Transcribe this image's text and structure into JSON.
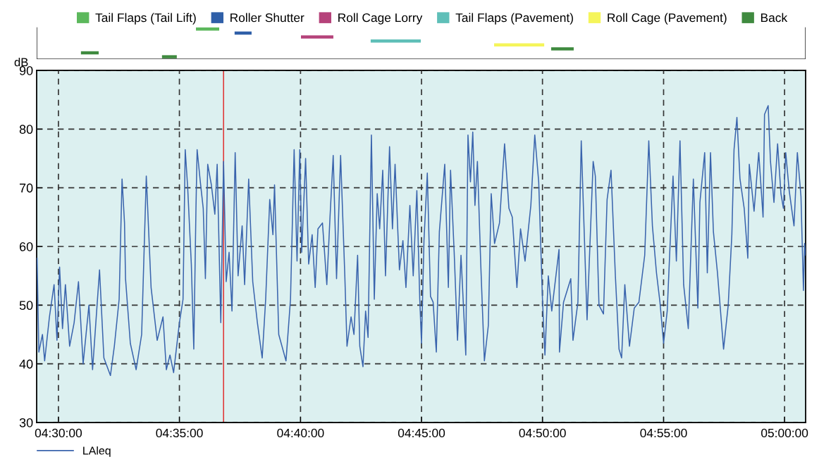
{
  "chart_data": [
    {
      "type": "bar",
      "orientation": "horizontal",
      "stacked": true,
      "categories": [
        null,
        null,
        null,
        null,
        null,
        null,
        null,
        null
      ],
      "xlim": [
        4.485,
        5.0145
      ],
      "tick_labels": false,
      "legend": "top",
      "series": [
        {
          "name": "Tail Flaps (Tail Lift)",
          "color": "#5cb85c",
          "values": [
            0.016,
            null,
            null,
            null,
            null,
            null,
            null,
            null
          ],
          "base": [
            4.5947,
            null,
            null,
            null,
            null,
            null,
            null,
            null
          ]
        },
        {
          "name": "Roller Shutter",
          "color": "#2f5fa8",
          "values": [
            null,
            0.0117,
            null,
            null,
            null,
            null,
            null,
            null
          ],
          "base": [
            null,
            4.6213,
            null,
            null,
            null,
            null,
            null,
            null
          ]
        },
        {
          "name": "Roll Cage Lorry",
          "color": "#b5427a",
          "values": [
            null,
            null,
            0.0223,
            null,
            null,
            null,
            null,
            null
          ],
          "base": [
            null,
            null,
            4.667,
            null,
            null,
            null,
            null,
            null
          ]
        },
        {
          "name": "Tail Flaps (Pavement)",
          "color": "#5fbfb8",
          "values": [
            null,
            null,
            null,
            0.0345,
            null,
            null,
            null,
            null
          ],
          "base": [
            null,
            null,
            null,
            4.715,
            null,
            null,
            null,
            null
          ]
        },
        {
          "name": "Roll Cage (Pavement)",
          "color": "#f5f55a",
          "values": [
            null,
            null,
            null,
            null,
            0.0345,
            null,
            null,
            null
          ],
          "base": [
            null,
            null,
            null,
            null,
            4.8,
            null,
            null,
            null
          ]
        },
        {
          "name": "Back",
          "color": "#3f8a3f",
          "values": [
            null,
            null,
            null,
            null,
            null,
            0.0155,
            null,
            null
          ],
          "base": [
            null,
            null,
            null,
            null,
            null,
            4.8393,
            null,
            null
          ]
        },
        {
          "color": "#3f8a3f",
          "values": [
            null,
            null,
            null,
            null,
            null,
            null,
            0.0122,
            null
          ],
          "base": [
            null,
            null,
            null,
            null,
            null,
            null,
            4.5155,
            null
          ]
        },
        {
          "color": "#3f8a3f",
          "values": [
            null,
            null,
            null,
            null,
            null,
            null,
            null,
            0.0102
          ],
          "base": [
            null,
            null,
            null,
            null,
            null,
            null,
            null,
            4.5713
          ]
        }
      ]
    },
    {
      "type": "line",
      "ylabel": "dB",
      "xlim": [
        4.485,
        5.0145
      ],
      "ylim": [
        30,
        90
      ],
      "yticks": [
        30,
        40,
        50,
        60,
        70,
        80,
        90
      ],
      "xticks": [
        {
          "value": 4.5,
          "label": "04:30:00"
        },
        {
          "value": 4.5833,
          "label": "04:35:00"
        },
        {
          "value": 4.6667,
          "label": "04:40:00"
        },
        {
          "value": 4.75,
          "label": "04:45:00"
        },
        {
          "value": 4.8333,
          "label": "04:50:00"
        },
        {
          "value": 4.9167,
          "label": "04:55:00"
        },
        {
          "value": 5.0,
          "label": "05:00:00"
        }
      ],
      "grid": true,
      "legend": "bottom left",
      "ref_lines": [
        {
          "axis": "x",
          "value": 4.6137,
          "color": "#e03030"
        }
      ],
      "x": [
        4.4853,
        4.4865,
        4.489,
        4.4905,
        4.4938,
        4.497,
        4.499,
        4.5008,
        4.5028,
        4.5048,
        4.5077,
        4.5108,
        4.5138,
        4.517,
        4.521,
        4.5235,
        4.5283,
        4.5313,
        4.5358,
        4.5385,
        4.5418,
        4.5438,
        4.5455,
        4.5462,
        4.5495,
        4.5535,
        4.5573,
        4.5605,
        4.5638,
        4.568,
        4.572,
        4.5743,
        4.5768,
        4.5793,
        4.5833,
        4.5858,
        4.5873,
        4.589,
        4.5915,
        4.5932,
        4.5947,
        4.5955,
        4.5977,
        4.5997,
        4.6012,
        4.6028,
        4.6053,
        4.6077,
        4.6093,
        4.6118,
        4.6137,
        4.6155,
        4.6175,
        4.6195,
        4.6217,
        4.6237,
        4.6265,
        4.6282,
        4.631,
        4.6338,
        4.637,
        4.6403,
        4.6427,
        4.6455,
        4.6477,
        4.6488,
        4.6517,
        4.6567,
        4.6598,
        4.6623,
        4.6643,
        4.6662,
        4.6675,
        4.6702,
        4.6723,
        4.6747,
        4.6768,
        4.6787,
        4.6818,
        4.6848,
        4.687,
        4.6892,
        4.6915,
        4.6943,
        4.6972,
        4.6987,
        4.7015,
        4.7035,
        4.706,
        4.7075,
        4.7097,
        4.7115,
        4.7132,
        4.7155,
        4.7175,
        4.7195,
        4.7212,
        4.7233,
        4.7252,
        4.728,
        4.73,
        4.7318,
        4.7348,
        4.7372,
        4.7393,
        4.742,
        4.7443,
        4.7468,
        4.7488,
        4.75,
        4.7517,
        4.754,
        4.7562,
        4.758,
        4.7602,
        4.7623,
        4.766,
        4.7685,
        4.77,
        4.7725,
        4.7748,
        4.7772,
        4.7805,
        4.782,
        4.7837,
        4.7853,
        4.7868,
        4.7885,
        4.7908,
        4.7933,
        4.796,
        4.798,
        4.8003,
        4.8037,
        4.8072,
        4.8102,
        4.8125,
        4.8157,
        4.8182,
        4.8213,
        4.8253,
        4.828,
        4.8307,
        4.8333,
        4.835,
        4.8373,
        4.8397,
        4.8447,
        4.845,
        4.8478,
        4.8528,
        4.8543,
        4.8577,
        4.86,
        4.864,
        4.8682,
        4.8697,
        4.8722,
        4.8753,
        4.8778,
        4.8805,
        4.8835,
        4.886,
        4.8878,
        4.89,
        4.8932,
        4.8965,
        4.8997,
        4.9037,
        4.9065,
        4.909,
        4.9118,
        4.9142,
        4.9167,
        4.9192,
        4.9232,
        4.9255,
        4.928,
        4.9305,
        4.9337,
        4.9372,
        4.9403,
        4.9417,
        4.945,
        4.9468,
        4.949,
        4.951,
        4.9538,
        4.958,
        4.9612,
        4.9637,
        4.9652,
        4.9672,
        4.9693,
        4.9722,
        4.9747,
        4.9757,
        4.979,
        4.9822,
        4.9852,
        4.9862,
        4.9887,
        4.9903,
        4.9927,
        4.9952,
        4.9975,
        4.9992,
        5.0008,
        5.0032,
        5.0065,
        5.0088,
        5.0113,
        5.013,
        5.0138,
        5.0145
      ],
      "series": [
        {
          "name": "LAleq",
          "color": "#3a64ad",
          "values": [
            58,
            42,
            45,
            40.5,
            48,
            53.5,
            44,
            56.5,
            46,
            53.5,
            43,
            47,
            54,
            40,
            50,
            39,
            56,
            41,
            38,
            43,
            51,
            71.5,
            64,
            54.5,
            43.5,
            39,
            45,
            72,
            53,
            44,
            48,
            39,
            41.5,
            38.5,
            47,
            51,
            76.5,
            70,
            57,
            42.5,
            66.5,
            76.5,
            71,
            66.5,
            54.5,
            74,
            70.5,
            65.5,
            74,
            47,
            74.5,
            54,
            59,
            49,
            76,
            55,
            63.5,
            53.5,
            71.5,
            54,
            47,
            41,
            51,
            68,
            62,
            70.5,
            45,
            40.5,
            51,
            76.5,
            57.5,
            76.5,
            59,
            75,
            57,
            62,
            53,
            63,
            64,
            53.5,
            65,
            75.5,
            54.5,
            75.5,
            55,
            43,
            48,
            45,
            58.5,
            43,
            39.5,
            49,
            44.5,
            79,
            51,
            69,
            63,
            73,
            55,
            77,
            63,
            74,
            56,
            61,
            53,
            67,
            55,
            69.5,
            51,
            43.5,
            61,
            72.5,
            51.5,
            50.5,
            42,
            62.5,
            74,
            53,
            73,
            59,
            44,
            58.5,
            41.5,
            79,
            71,
            79.5,
            67,
            74.5,
            57,
            40.5,
            46.5,
            69,
            60.5,
            64,
            77.5,
            66.5,
            65,
            53,
            63,
            57.5,
            67,
            79,
            71,
            51,
            41.5,
            55,
            49,
            59.5,
            42,
            50.5,
            54.5,
            44,
            50.5,
            78,
            47.5,
            74.5,
            72,
            50,
            48.5,
            68,
            73,
            55,
            42.5,
            41,
            53.5,
            43,
            49.5,
            50.5,
            58.5,
            78,
            63.5,
            55.5,
            50.5,
            43.5,
            49,
            72,
            57.5,
            78,
            53.5,
            46,
            71.5,
            49.5,
            67.5,
            76,
            55.5,
            76,
            62.5,
            55.5,
            42.5,
            50,
            62,
            76.5,
            82,
            71.5,
            66.5,
            58,
            74,
            66,
            76,
            65,
            82.5,
            84,
            74.5,
            67.5,
            77.5,
            69,
            66.5,
            76,
            69.5,
            63.5,
            76,
            68.5,
            52.5,
            60.5,
            58.5
          ]
        }
      ]
    }
  ]
}
